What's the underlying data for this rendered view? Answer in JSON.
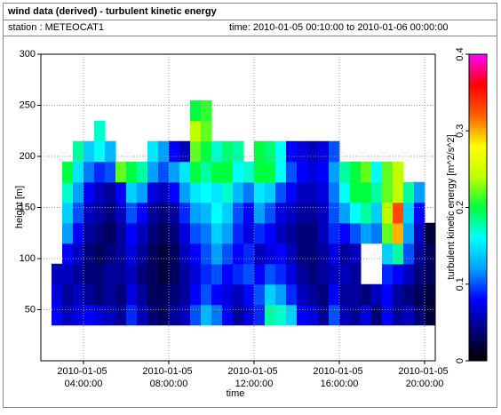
{
  "chart_data": {
    "type": "heatmap",
    "title": "wind data (derived) - turbulent kinetic energy",
    "station": "station : METEOCAT1",
    "time_range": "time: 2010-01-05 00:10:00 to 2010-01-06 00:00:00",
    "x_label": "time",
    "y_label": "height [m]",
    "colorbar_label": "turbulent kinetic energy [m^2/s^2]",
    "x": [
      "2010-01-05 02:45:00",
      "2010-01-05 03:15:00",
      "2010-01-05 03:45:00",
      "2010-01-05 04:15:00",
      "2010-01-05 04:45:00",
      "2010-01-05 05:15:00",
      "2010-01-05 05:45:00",
      "2010-01-05 06:15:00",
      "2010-01-05 06:45:00",
      "2010-01-05 07:15:00",
      "2010-01-05 07:45:00",
      "2010-01-05 08:15:00",
      "2010-01-05 08:45:00",
      "2010-01-05 09:15:00",
      "2010-01-05 09:45:00",
      "2010-01-05 10:15:00",
      "2010-01-05 10:45:00",
      "2010-01-05 11:15:00",
      "2010-01-05 11:45:00",
      "2010-01-05 12:15:00",
      "2010-01-05 12:45:00",
      "2010-01-05 13:15:00",
      "2010-01-05 13:45:00",
      "2010-01-05 14:15:00",
      "2010-01-05 14:45:00",
      "2010-01-05 15:15:00",
      "2010-01-05 15:45:00",
      "2010-01-05 16:15:00",
      "2010-01-05 16:45:00",
      "2010-01-05 17:15:00",
      "2010-01-05 17:45:00",
      "2010-01-05 18:15:00",
      "2010-01-05 18:45:00",
      "2010-01-05 19:15:00",
      "2010-01-05 19:45:00",
      "2010-01-05 20:15:00"
    ],
    "y": [
      45,
      65,
      85,
      105,
      125,
      145,
      165,
      185,
      205,
      225,
      245
    ],
    "z": [
      [
        0.08,
        0.06,
        0.07,
        0.08,
        0.07,
        0.06,
        0.05,
        0.09,
        0.06,
        0.04,
        0.03,
        0.05,
        0.06,
        0.1,
        0.13,
        0.11,
        0.08,
        0.05,
        0.07,
        0.09,
        0.18,
        0.17,
        0.14,
        0.08,
        0.07,
        0.05,
        0.1,
        0.06,
        0.05,
        0.07,
        0.04,
        0.08,
        0.05,
        0.06,
        0.04,
        0.02
      ],
      [
        0.07,
        0.05,
        0.06,
        0.05,
        0.04,
        0.05,
        0.04,
        0.07,
        0.05,
        0.03,
        0.03,
        0.04,
        0.05,
        0.08,
        0.1,
        0.08,
        0.07,
        0.06,
        0.08,
        0.1,
        0.14,
        0.12,
        0.09,
        0.06,
        0.05,
        0.04,
        0.08,
        0.05,
        0.05,
        0.04,
        0.06,
        0.08,
        0.05,
        0.04,
        0.03,
        0.02
      ],
      [
        0.06,
        0.06,
        0.05,
        0.04,
        0.04,
        0.05,
        0.05,
        0.06,
        0.04,
        0.03,
        0.02,
        0.03,
        0.05,
        0.07,
        0.09,
        0.1,
        0.08,
        0.09,
        0.1,
        0.08,
        0.1,
        0.09,
        0.07,
        0.05,
        0.04,
        0.05,
        0.06,
        0.06,
        0.05,
        null,
        null,
        0.09,
        0.08,
        0.06,
        0.04,
        0.03
      ],
      [
        null,
        0.08,
        0.06,
        0.04,
        0.03,
        0.04,
        0.05,
        0.07,
        0.05,
        0.03,
        0.02,
        0.03,
        0.06,
        0.08,
        0.1,
        0.12,
        0.1,
        0.08,
        0.09,
        0.06,
        0.07,
        0.08,
        0.06,
        0.04,
        0.04,
        0.05,
        0.07,
        0.05,
        0.06,
        null,
        null,
        0.14,
        0.18,
        0.1,
        0.05,
        0.03
      ],
      [
        null,
        0.12,
        0.08,
        0.05,
        0.04,
        0.03,
        0.05,
        0.08,
        0.06,
        0.04,
        0.03,
        0.04,
        0.07,
        0.1,
        0.11,
        0.14,
        0.12,
        0.09,
        0.07,
        0.09,
        0.08,
        0.06,
        0.05,
        0.04,
        0.04,
        0.06,
        0.09,
        0.08,
        0.1,
        0.12,
        0.11,
        0.22,
        0.3,
        0.12,
        0.06,
        0.02
      ],
      [
        null,
        0.14,
        0.1,
        0.06,
        0.05,
        0.04,
        0.06,
        0.1,
        0.08,
        0.05,
        0.04,
        0.05,
        0.09,
        0.12,
        0.13,
        0.16,
        0.14,
        0.1,
        0.08,
        0.12,
        0.1,
        0.07,
        0.06,
        0.05,
        0.05,
        0.06,
        0.1,
        0.12,
        0.16,
        0.18,
        0.14,
        0.24,
        0.33,
        0.14,
        0.08,
        null
      ],
      [
        null,
        0.17,
        0.12,
        0.08,
        0.06,
        0.05,
        0.08,
        0.14,
        0.12,
        0.07,
        0.06,
        0.08,
        0.12,
        0.15,
        0.16,
        0.15,
        0.17,
        0.13,
        0.11,
        0.15,
        0.14,
        0.1,
        0.08,
        0.06,
        0.06,
        0.07,
        0.11,
        0.16,
        0.2,
        0.2,
        0.18,
        0.22,
        0.24,
        0.18,
        0.12,
        null
      ],
      [
        null,
        0.2,
        0.15,
        0.11,
        0.09,
        0.1,
        0.22,
        0.2,
        0.18,
        0.12,
        0.1,
        0.12,
        0.15,
        0.2,
        0.18,
        0.2,
        0.2,
        0.16,
        0.17,
        0.2,
        0.2,
        0.16,
        0.1,
        0.08,
        0.07,
        0.08,
        0.12,
        0.18,
        0.2,
        0.22,
        0.16,
        0.22,
        0.24,
        null,
        null,
        null
      ],
      [
        null,
        null,
        0.18,
        0.14,
        0.16,
        0.13,
        null,
        null,
        null,
        0.15,
        0.12,
        0.08,
        0.06,
        0.22,
        0.2,
        0.17,
        0.19,
        0.18,
        null,
        0.2,
        0.19,
        0.16,
        0.08,
        0.07,
        0.06,
        0.07,
        0.1,
        null,
        null,
        null,
        null,
        null,
        null,
        null,
        null,
        null
      ],
      [
        null,
        null,
        null,
        null,
        0.17,
        null,
        null,
        null,
        null,
        null,
        null,
        null,
        null,
        0.24,
        0.22,
        null,
        null,
        null,
        null,
        null,
        null,
        null,
        null,
        null,
        null,
        null,
        null,
        null,
        null,
        null,
        null,
        null,
        null,
        null,
        null,
        null
      ],
      [
        null,
        null,
        null,
        null,
        null,
        null,
        null,
        null,
        null,
        null,
        null,
        null,
        null,
        0.2,
        0.21,
        null,
        null,
        null,
        null,
        null,
        null,
        null,
        null,
        null,
        null,
        null,
        null,
        null,
        null,
        null,
        null,
        null,
        null,
        null,
        null,
        null
      ]
    ],
    "xlim": [
      "2010-01-05 02:00:00",
      "2010-01-05 20:30:00"
    ],
    "xticks": [
      "2010-01-05 04:00:00",
      "2010-01-05 08:00:00",
      "2010-01-05 12:00:00",
      "2010-01-05 16:00:00",
      "2010-01-05 20:00:00"
    ],
    "ylim": [
      0,
      300
    ],
    "yticks": [
      50,
      100,
      150,
      200,
      250,
      300
    ],
    "zlim": [
      0,
      0.4
    ],
    "zticks": [
      0,
      0.1,
      0.2,
      0.3,
      0.4
    ],
    "colormap": [
      "#000000",
      "#00007a",
      "#0000ff",
      "#00a0ff",
      "#00ffff",
      "#00ff40",
      "#c0ff00",
      "#ffff00",
      "#ff6000",
      "#ff0000",
      "#ff00ff"
    ],
    "grid": true
  }
}
